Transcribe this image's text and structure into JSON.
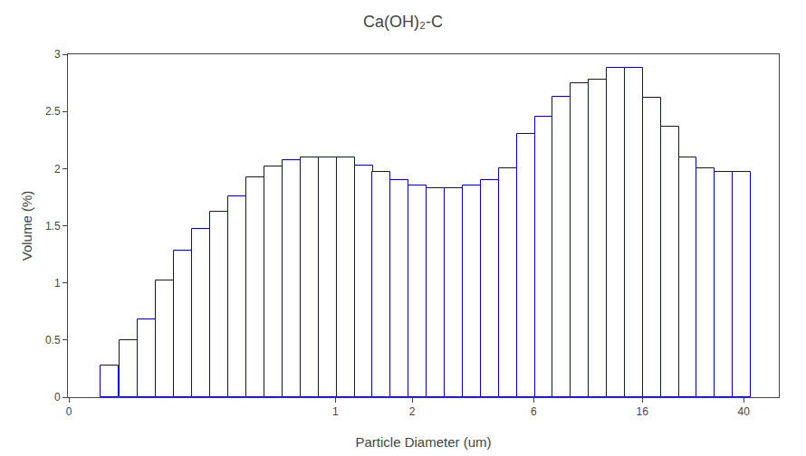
{
  "chart_data": {
    "type": "bar",
    "title": "Ca(OH)₂-C",
    "xlabel": "Particle Diameter (um)",
    "ylabel": "Volume (%)",
    "x": [
      0.13,
      0.154,
      0.182,
      0.214,
      0.252,
      0.297,
      0.35,
      0.412,
      0.485,
      0.571,
      0.672,
      0.791,
      0.931,
      1.096,
      1.29,
      1.518,
      1.787,
      2.103,
      2.474,
      2.912,
      3.426,
      4.031,
      4.745,
      5.583,
      6.571,
      7.732,
      9.099,
      10.706,
      12.598,
      14.825,
      17.437,
      20.513,
      24.143,
      28.412,
      33.424,
      39.33
    ],
    "values": [
      0.28,
      0.5,
      0.68,
      1.02,
      1.28,
      1.47,
      1.62,
      1.76,
      1.92,
      2.02,
      2.07,
      2.1,
      2.1,
      2.1,
      2.03,
      1.97,
      1.9,
      1.85,
      1.83,
      1.83,
      1.85,
      1.9,
      2.0,
      2.3,
      2.45,
      2.63,
      2.75,
      2.78,
      2.88,
      2.88,
      2.62,
      2.37,
      2.1,
      2.0,
      1.97,
      1.97
    ],
    "color": "#0000cc",
    "log": "x",
    "xlim": [
      0.08912509381337455,
      54.95408738576245
    ],
    "xticks": [
      {
        "value": 0.09,
        "label": "0"
      },
      1,
      2,
      6,
      16,
      40
    ],
    "ylim": [
      0,
      3
    ],
    "yticks": [
      0,
      0.5,
      1,
      1.5,
      2,
      2.5,
      3
    ],
    "grid": false
  }
}
